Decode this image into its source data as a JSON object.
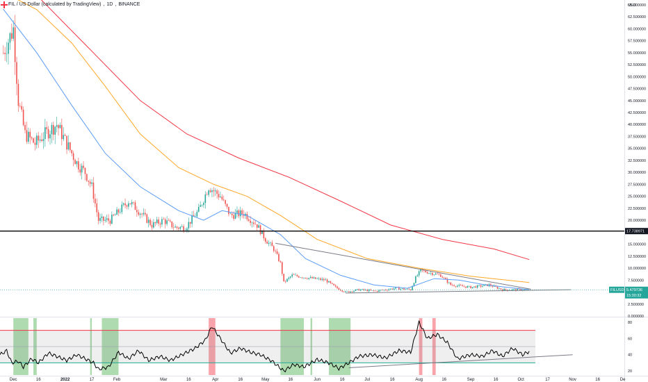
{
  "header": {
    "symbol_title": "FIL / US Dollar (calculated by TradingView)",
    "interval": "1D",
    "exchange": "BINANCE"
  },
  "axis": {
    "currency": "USD"
  },
  "price_labels": {
    "horizontal_line": "17.738971",
    "symbol_badge": "FILUSD",
    "last_price": "5.479736",
    "countdown": "15:30:32"
  },
  "colors": {
    "up": "#26a69a",
    "down": "#ef5350",
    "ma_fast": "#5b9cf6",
    "ma_mid": "#ffa726",
    "ma_slow": "#f23645",
    "oscillator": "#000000",
    "osc_upper": "#f23645",
    "osc_lower": "#22ab94"
  },
  "chart_data": [
    {
      "type": "candlestick",
      "title": "FIL / US Dollar (calculated by TradingView), 1D, BINANCE",
      "ylim": [
        0,
        66
      ],
      "y_ticks": [
        "0.000000",
        "2.500000",
        "5.000000",
        "7.500000",
        "10.000000",
        "12.500000",
        "15.000000",
        "17.500000",
        "20.000000",
        "22.500000",
        "25.000000",
        "27.500000",
        "30.000000",
        "32.500000",
        "35.000000",
        "37.500000",
        "40.000000",
        "42.500000",
        "45.000000",
        "47.500000",
        "50.000000",
        "52.500000",
        "55.000000",
        "57.500000",
        "60.000000",
        "62.500000",
        "65.000000"
      ],
      "x_ticks": [
        "Dec",
        "16",
        "2022",
        "17",
        "Feb",
        "Mar",
        "16",
        "Apr",
        "16",
        "May",
        "16",
        "Jun",
        "16",
        "Jul",
        "16",
        "Aug",
        "16",
        "Sep",
        "16",
        "Oct",
        "17",
        "Nov",
        "16",
        "De"
      ],
      "price_path": [
        {
          "x": "2021-11-25",
          "y": 55
        },
        {
          "x": "2021-12-01",
          "y": 60
        },
        {
          "x": "2021-12-04",
          "y": 45
        },
        {
          "x": "2021-12-08",
          "y": 38
        },
        {
          "x": "2021-12-14",
          "y": 36
        },
        {
          "x": "2021-12-20",
          "y": 38
        },
        {
          "x": "2021-12-27",
          "y": 40
        },
        {
          "x": "2022-01-02",
          "y": 36
        },
        {
          "x": "2022-01-08",
          "y": 32
        },
        {
          "x": "2022-01-13",
          "y": 30
        },
        {
          "x": "2022-01-17",
          "y": 27
        },
        {
          "x": "2022-01-21",
          "y": 20
        },
        {
          "x": "2022-01-28",
          "y": 20
        },
        {
          "x": "2022-02-08",
          "y": 24
        },
        {
          "x": "2022-02-14",
          "y": 22
        },
        {
          "x": "2022-02-22",
          "y": 19
        },
        {
          "x": "2022-03-01",
          "y": 20
        },
        {
          "x": "2022-03-08",
          "y": 18.5
        },
        {
          "x": "2022-03-14",
          "y": 18.5
        },
        {
          "x": "2022-03-22",
          "y": 22
        },
        {
          "x": "2022-03-28",
          "y": 27
        },
        {
          "x": "2022-04-04",
          "y": 25
        },
        {
          "x": "2022-04-10",
          "y": 21
        },
        {
          "x": "2022-04-18",
          "y": 21.5
        },
        {
          "x": "2022-04-26",
          "y": 19
        },
        {
          "x": "2022-05-01",
          "y": 16
        },
        {
          "x": "2022-05-06",
          "y": 14
        },
        {
          "x": "2022-05-10",
          "y": 11
        },
        {
          "x": "2022-05-12",
          "y": 7
        },
        {
          "x": "2022-05-17",
          "y": 8.5
        },
        {
          "x": "2022-05-26",
          "y": 8
        },
        {
          "x": "2022-06-06",
          "y": 7.5
        },
        {
          "x": "2022-06-12",
          "y": 6
        },
        {
          "x": "2022-06-18",
          "y": 5
        },
        {
          "x": "2022-06-26",
          "y": 5.5
        },
        {
          "x": "2022-07-06",
          "y": 5.2
        },
        {
          "x": "2022-07-18",
          "y": 5.8
        },
        {
          "x": "2022-07-27",
          "y": 5.5
        },
        {
          "x": "2022-07-30",
          "y": 8
        },
        {
          "x": "2022-08-02",
          "y": 9.5
        },
        {
          "x": "2022-08-08",
          "y": 9
        },
        {
          "x": "2022-08-14",
          "y": 8.5
        },
        {
          "x": "2022-08-20",
          "y": 6.5
        },
        {
          "x": "2022-09-01",
          "y": 6
        },
        {
          "x": "2022-09-12",
          "y": 6.5
        },
        {
          "x": "2022-09-20",
          "y": 5.5
        },
        {
          "x": "2022-10-01",
          "y": 5.5
        },
        {
          "x": "2022-10-06",
          "y": 5.48
        }
      ],
      "moving_averages": [
        {
          "points": [
            {
              "x": "2021-11-23",
              "y": 65
            },
            {
              "x": "2021-12-15",
              "y": 55
            },
            {
              "x": "2022-01-05",
              "y": 44
            },
            {
              "x": "2022-01-25",
              "y": 34
            },
            {
              "x": "2022-02-15",
              "y": 27
            },
            {
              "x": "2022-03-10",
              "y": 22
            },
            {
              "x": "2022-03-25",
              "y": 20
            },
            {
              "x": "2022-04-05",
              "y": 22
            },
            {
              "x": "2022-04-20",
              "y": 21
            },
            {
              "x": "2022-05-10",
              "y": 17
            },
            {
              "x": "2022-05-25",
              "y": 12
            },
            {
              "x": "2022-06-15",
              "y": 8.5
            },
            {
              "x": "2022-07-05",
              "y": 6.5
            },
            {
              "x": "2022-07-25",
              "y": 5.8
            },
            {
              "x": "2022-08-10",
              "y": 7.8
            },
            {
              "x": "2022-08-25",
              "y": 7.5
            },
            {
              "x": "2022-09-10",
              "y": 6.5
            },
            {
              "x": "2022-10-06",
              "y": 5.5
            }
          ]
        },
        {
          "points": [
            {
              "x": "2021-11-23",
              "y": 68
            },
            {
              "x": "2021-12-15",
              "y": 64
            },
            {
              "x": "2022-01-05",
              "y": 57
            },
            {
              "x": "2022-01-25",
              "y": 48
            },
            {
              "x": "2022-02-15",
              "y": 38
            },
            {
              "x": "2022-03-10",
              "y": 31
            },
            {
              "x": "2022-03-31",
              "y": 27.5
            },
            {
              "x": "2022-04-20",
              "y": 25
            },
            {
              "x": "2022-05-10",
              "y": 21
            },
            {
              "x": "2022-06-01",
              "y": 16
            },
            {
              "x": "2022-07-01",
              "y": 12
            },
            {
              "x": "2022-08-01",
              "y": 10
            },
            {
              "x": "2022-09-01",
              "y": 8.3
            },
            {
              "x": "2022-10-06",
              "y": 7
            }
          ]
        },
        {
          "points": [
            {
              "x": "2021-11-23",
              "y": 68
            },
            {
              "x": "2021-12-15",
              "y": 67
            },
            {
              "x": "2022-01-15",
              "y": 56
            },
            {
              "x": "2022-02-15",
              "y": 45
            },
            {
              "x": "2022-03-15",
              "y": 38
            },
            {
              "x": "2022-04-15",
              "y": 33
            },
            {
              "x": "2022-05-15",
              "y": 29
            },
            {
              "x": "2022-06-15",
              "y": 24
            },
            {
              "x": "2022-07-15",
              "y": 19
            },
            {
              "x": "2022-08-15",
              "y": 16
            },
            {
              "x": "2022-09-15",
              "y": 14
            },
            {
              "x": "2022-10-06",
              "y": 11.8
            }
          ]
        }
      ],
      "horizontal_line": 17.738971,
      "trend_lines": [
        {
          "from": {
            "x": "2022-05-07",
            "y": 15.2
          },
          "to": {
            "x": "2022-10-07",
            "y": 5.6
          }
        },
        {
          "from": {
            "x": "2022-06-18",
            "y": 4.8
          },
          "to": {
            "x": "2022-10-31",
            "y": 5.5
          }
        }
      ],
      "last_price": 5.479736
    },
    {
      "type": "line",
      "ylim": [
        15,
        85
      ],
      "y_ticks": [
        20,
        40,
        60,
        80
      ],
      "upper_band": 70,
      "lower_band": 30,
      "middle": 50,
      "values": [
        {
          "x": "2021-11-23",
          "y": 40
        },
        {
          "x": "2021-11-27",
          "y": 45
        },
        {
          "x": "2021-11-30",
          "y": 30
        },
        {
          "x": "2021-12-04",
          "y": 32
        },
        {
          "x": "2021-12-07",
          "y": 25
        },
        {
          "x": "2021-12-12",
          "y": 35
        },
        {
          "x": "2021-12-16",
          "y": 30
        },
        {
          "x": "2021-12-22",
          "y": 42
        },
        {
          "x": "2021-12-27",
          "y": 38
        },
        {
          "x": "2022-01-02",
          "y": 33
        },
        {
          "x": "2022-01-08",
          "y": 40
        },
        {
          "x": "2022-01-13",
          "y": 35
        },
        {
          "x": "2022-01-18",
          "y": 30
        },
        {
          "x": "2022-01-21",
          "y": 22
        },
        {
          "x": "2022-01-27",
          "y": 25
        },
        {
          "x": "2022-02-02",
          "y": 43
        },
        {
          "x": "2022-02-08",
          "y": 35
        },
        {
          "x": "2022-02-14",
          "y": 45
        },
        {
          "x": "2022-02-20",
          "y": 33
        },
        {
          "x": "2022-02-27",
          "y": 38
        },
        {
          "x": "2022-03-05",
          "y": 33
        },
        {
          "x": "2022-03-12",
          "y": 40
        },
        {
          "x": "2022-03-20",
          "y": 48
        },
        {
          "x": "2022-03-26",
          "y": 58
        },
        {
          "x": "2022-03-30",
          "y": 75
        },
        {
          "x": "2022-04-04",
          "y": 60
        },
        {
          "x": "2022-04-10",
          "y": 42
        },
        {
          "x": "2022-04-16",
          "y": 48
        },
        {
          "x": "2022-04-22",
          "y": 43
        },
        {
          "x": "2022-04-28",
          "y": 40
        },
        {
          "x": "2022-05-05",
          "y": 32
        },
        {
          "x": "2022-05-12",
          "y": 20
        },
        {
          "x": "2022-05-18",
          "y": 28
        },
        {
          "x": "2022-05-24",
          "y": 25
        },
        {
          "x": "2022-06-01",
          "y": 34
        },
        {
          "x": "2022-06-08",
          "y": 30
        },
        {
          "x": "2022-06-14",
          "y": 23
        },
        {
          "x": "2022-06-20",
          "y": 30
        },
        {
          "x": "2022-06-26",
          "y": 38
        },
        {
          "x": "2022-07-04",
          "y": 40
        },
        {
          "x": "2022-07-12",
          "y": 36
        },
        {
          "x": "2022-07-20",
          "y": 45
        },
        {
          "x": "2022-07-27",
          "y": 43
        },
        {
          "x": "2022-08-01",
          "y": 80
        },
        {
          "x": "2022-08-06",
          "y": 60
        },
        {
          "x": "2022-08-12",
          "y": 65
        },
        {
          "x": "2022-08-18",
          "y": 55
        },
        {
          "x": "2022-08-24",
          "y": 35
        },
        {
          "x": "2022-09-01",
          "y": 40
        },
        {
          "x": "2022-09-08",
          "y": 38
        },
        {
          "x": "2022-09-14",
          "y": 45
        },
        {
          "x": "2022-09-20",
          "y": 38
        },
        {
          "x": "2022-09-26",
          "y": 48
        },
        {
          "x": "2022-10-02",
          "y": 40
        },
        {
          "x": "2022-10-06",
          "y": 44
        }
      ],
      "trend_line": {
        "from": {
          "x": "2022-06-20",
          "y": 24
        },
        "to": {
          "x": "2022-11-01",
          "y": 40
        }
      },
      "oversold_highlights": [
        [
          "2021-12-01",
          "2021-12-10"
        ],
        [
          "2021-12-13",
          "2021-12-15"
        ],
        [
          "2022-01-16",
          "2022-01-17"
        ],
        [
          "2022-01-23",
          "2022-02-02"
        ],
        [
          "2022-05-10",
          "2022-05-24"
        ],
        [
          "2022-05-28",
          "2022-05-29"
        ],
        [
          "2022-06-08",
          "2022-06-21"
        ]
      ],
      "overbought_highlights": [
        [
          "2022-03-28",
          "2022-04-01"
        ],
        [
          "2022-08-01",
          "2022-08-03"
        ],
        [
          "2022-08-09",
          "2022-08-11"
        ]
      ]
    }
  ]
}
